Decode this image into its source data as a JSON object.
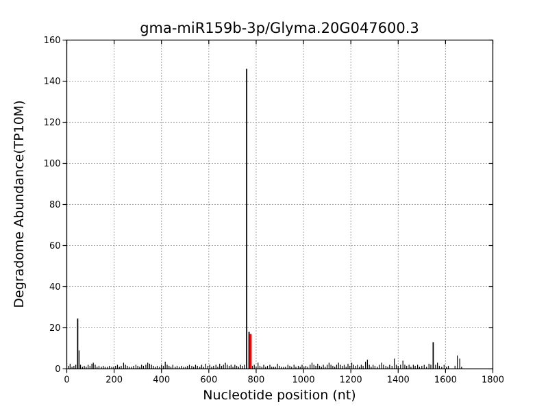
{
  "chart_data": {
    "type": "bar",
    "title": "gma-miR159b-3p/Glyma.20G047600.3",
    "xlabel": "Nucleotide position (nt)",
    "ylabel": "Degradome Abundance(TP10M)",
    "xlim": [
      0,
      1800
    ],
    "ylim": [
      0,
      160
    ],
    "xticks": [
      0,
      200,
      400,
      600,
      800,
      1000,
      1200,
      1400,
      1600,
      1800
    ],
    "yticks": [
      0,
      20,
      40,
      60,
      80,
      100,
      120,
      140,
      160
    ],
    "grid": true,
    "grid_style": "dotted",
    "bar_color": "#000000",
    "highlight_color": "#ff0000",
    "background_color": "#ffffff",
    "main_peak": {
      "x": 760,
      "y": 146
    },
    "highlight_peak": {
      "x": 776,
      "y": 17
    },
    "bars": [
      [
        8,
        1.5
      ],
      [
        14,
        2.5
      ],
      [
        22,
        1
      ],
      [
        30,
        1.5
      ],
      [
        38,
        2
      ],
      [
        46,
        24.5
      ],
      [
        52,
        9
      ],
      [
        58,
        2
      ],
      [
        66,
        1
      ],
      [
        74,
        1.5
      ],
      [
        82,
        1
      ],
      [
        90,
        2
      ],
      [
        98,
        1.5
      ],
      [
        106,
        2.5
      ],
      [
        112,
        3
      ],
      [
        120,
        2
      ],
      [
        128,
        1
      ],
      [
        136,
        1.5
      ],
      [
        146,
        1
      ],
      [
        154,
        1.5
      ],
      [
        162,
        1
      ],
      [
        172,
        1
      ],
      [
        180,
        1.5
      ],
      [
        190,
        1
      ],
      [
        198,
        1
      ],
      [
        206,
        1.5
      ],
      [
        214,
        2
      ],
      [
        222,
        1
      ],
      [
        230,
        1.5
      ],
      [
        240,
        3
      ],
      [
        248,
        2
      ],
      [
        256,
        1.5
      ],
      [
        264,
        1
      ],
      [
        274,
        1
      ],
      [
        282,
        1.5
      ],
      [
        292,
        2
      ],
      [
        300,
        1.5
      ],
      [
        308,
        1
      ],
      [
        316,
        2
      ],
      [
        324,
        1.5
      ],
      [
        334,
        2
      ],
      [
        342,
        3
      ],
      [
        350,
        2.5
      ],
      [
        358,
        2
      ],
      [
        366,
        1.5
      ],
      [
        374,
        1
      ],
      [
        382,
        1.5
      ],
      [
        392,
        1
      ],
      [
        400,
        2
      ],
      [
        408,
        1.5
      ],
      [
        416,
        3.5
      ],
      [
        424,
        2
      ],
      [
        432,
        1.5
      ],
      [
        440,
        1
      ],
      [
        448,
        2
      ],
      [
        458,
        1
      ],
      [
        466,
        1.5
      ],
      [
        476,
        1
      ],
      [
        484,
        1.5
      ],
      [
        494,
        1
      ],
      [
        502,
        1
      ],
      [
        510,
        1.5
      ],
      [
        518,
        2
      ],
      [
        528,
        1.5
      ],
      [
        536,
        1
      ],
      [
        544,
        2
      ],
      [
        552,
        1.5
      ],
      [
        562,
        1
      ],
      [
        570,
        2
      ],
      [
        578,
        1
      ],
      [
        586,
        2.5
      ],
      [
        596,
        1.5
      ],
      [
        604,
        2
      ],
      [
        612,
        1
      ],
      [
        620,
        1.5
      ],
      [
        630,
        2
      ],
      [
        638,
        1
      ],
      [
        646,
        2.5
      ],
      [
        654,
        1.5
      ],
      [
        662,
        2
      ],
      [
        670,
        3
      ],
      [
        678,
        2
      ],
      [
        686,
        1.5
      ],
      [
        694,
        2
      ],
      [
        702,
        1
      ],
      [
        710,
        2
      ],
      [
        718,
        1.5
      ],
      [
        726,
        1
      ],
      [
        734,
        2
      ],
      [
        742,
        1.5
      ],
      [
        750,
        2
      ],
      [
        760,
        146
      ],
      [
        770,
        18
      ],
      [
        776,
        17,
        "r"
      ],
      [
        784,
        1.5
      ],
      [
        792,
        2
      ],
      [
        800,
        1
      ],
      [
        808,
        3
      ],
      [
        816,
        1.5
      ],
      [
        824,
        1
      ],
      [
        832,
        2
      ],
      [
        840,
        1
      ],
      [
        848,
        1.5
      ],
      [
        858,
        2
      ],
      [
        866,
        1
      ],
      [
        874,
        1
      ],
      [
        882,
        1
      ],
      [
        890,
        2.5
      ],
      [
        898,
        1.5
      ],
      [
        906,
        1
      ],
      [
        916,
        1
      ],
      [
        924,
        1
      ],
      [
        934,
        2
      ],
      [
        942,
        1.5
      ],
      [
        950,
        1
      ],
      [
        960,
        2
      ],
      [
        968,
        1
      ],
      [
        978,
        1.5
      ],
      [
        986,
        1
      ],
      [
        994,
        2
      ],
      [
        1002,
        1
      ],
      [
        1010,
        1.5
      ],
      [
        1018,
        1
      ],
      [
        1028,
        2
      ],
      [
        1036,
        3
      ],
      [
        1044,
        2
      ],
      [
        1052,
        1.5
      ],
      [
        1060,
        2.5
      ],
      [
        1068,
        1.5
      ],
      [
        1076,
        1
      ],
      [
        1084,
        2
      ],
      [
        1092,
        1
      ],
      [
        1100,
        2
      ],
      [
        1108,
        3
      ],
      [
        1116,
        2
      ],
      [
        1124,
        1.5
      ],
      [
        1132,
        1
      ],
      [
        1140,
        2
      ],
      [
        1148,
        3
      ],
      [
        1156,
        2
      ],
      [
        1164,
        1.5
      ],
      [
        1172,
        2
      ],
      [
        1180,
        1
      ],
      [
        1188,
        2.5
      ],
      [
        1196,
        1.5
      ],
      [
        1204,
        3
      ],
      [
        1212,
        2
      ],
      [
        1220,
        1.5
      ],
      [
        1228,
        2
      ],
      [
        1236,
        1
      ],
      [
        1244,
        2
      ],
      [
        1252,
        1.5
      ],
      [
        1262,
        3.5
      ],
      [
        1270,
        4.5
      ],
      [
        1278,
        2
      ],
      [
        1286,
        1
      ],
      [
        1294,
        2
      ],
      [
        1302,
        1.5
      ],
      [
        1312,
        1
      ],
      [
        1320,
        2
      ],
      [
        1330,
        3
      ],
      [
        1338,
        2
      ],
      [
        1348,
        1.5
      ],
      [
        1356,
        1
      ],
      [
        1364,
        2
      ],
      [
        1374,
        1.5
      ],
      [
        1384,
        5
      ],
      [
        1392,
        2
      ],
      [
        1400,
        1.5
      ],
      [
        1410,
        2
      ],
      [
        1420,
        4
      ],
      [
        1428,
        2
      ],
      [
        1436,
        1.5
      ],
      [
        1446,
        2
      ],
      [
        1454,
        1
      ],
      [
        1464,
        2
      ],
      [
        1472,
        1.5
      ],
      [
        1482,
        2
      ],
      [
        1490,
        1
      ],
      [
        1500,
        1.5
      ],
      [
        1510,
        2
      ],
      [
        1520,
        1
      ],
      [
        1530,
        2.5
      ],
      [
        1538,
        2
      ],
      [
        1548,
        13
      ],
      [
        1558,
        2
      ],
      [
        1566,
        3
      ],
      [
        1574,
        1.5
      ],
      [
        1584,
        1
      ],
      [
        1594,
        2
      ],
      [
        1604,
        1
      ],
      [
        1612,
        1.5
      ],
      [
        1640,
        1.5
      ],
      [
        1650,
        6.5
      ],
      [
        1660,
        5
      ],
      [
        1668,
        1
      ]
    ]
  }
}
